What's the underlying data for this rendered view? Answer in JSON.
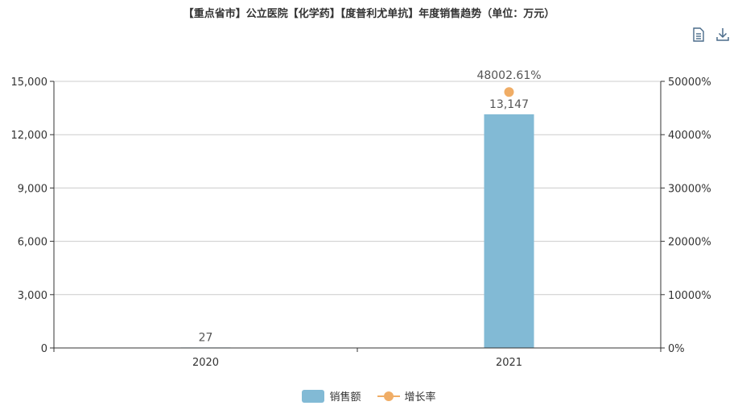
{
  "title": "【重点省市】公立医院【化学药】【度普利尤单抗】年度销售趋势（单位：万元）",
  "toolbox": {
    "data_view_icon": "document-icon",
    "download_icon": "download-icon"
  },
  "colors": {
    "bar": "#82bad5",
    "line": "#f0ad66",
    "axis": "#333333",
    "grid": "#cccccc"
  },
  "chart_data": {
    "type": "bar",
    "categories": [
      "2020",
      "2021"
    ],
    "series": [
      {
        "name": "销售额",
        "type": "bar",
        "axis": "left",
        "values": [
          27,
          13147
        ],
        "labels": [
          "27",
          "13,147"
        ]
      },
      {
        "name": "增长率",
        "type": "line",
        "axis": "right",
        "values": [
          null,
          48002.61
        ],
        "labels": [
          "",
          "48002.61%"
        ]
      }
    ],
    "y_left": {
      "min": 0,
      "max": 15000,
      "ticks": [
        "0",
        "3,000",
        "6,000",
        "9,000",
        "12,000",
        "15,000"
      ]
    },
    "y_right": {
      "min": 0,
      "max": 50000,
      "ticks": [
        "0%",
        "10000%",
        "20000%",
        "30000%",
        "40000%",
        "50000%"
      ]
    },
    "grid": true,
    "legend_position": "bottom"
  }
}
